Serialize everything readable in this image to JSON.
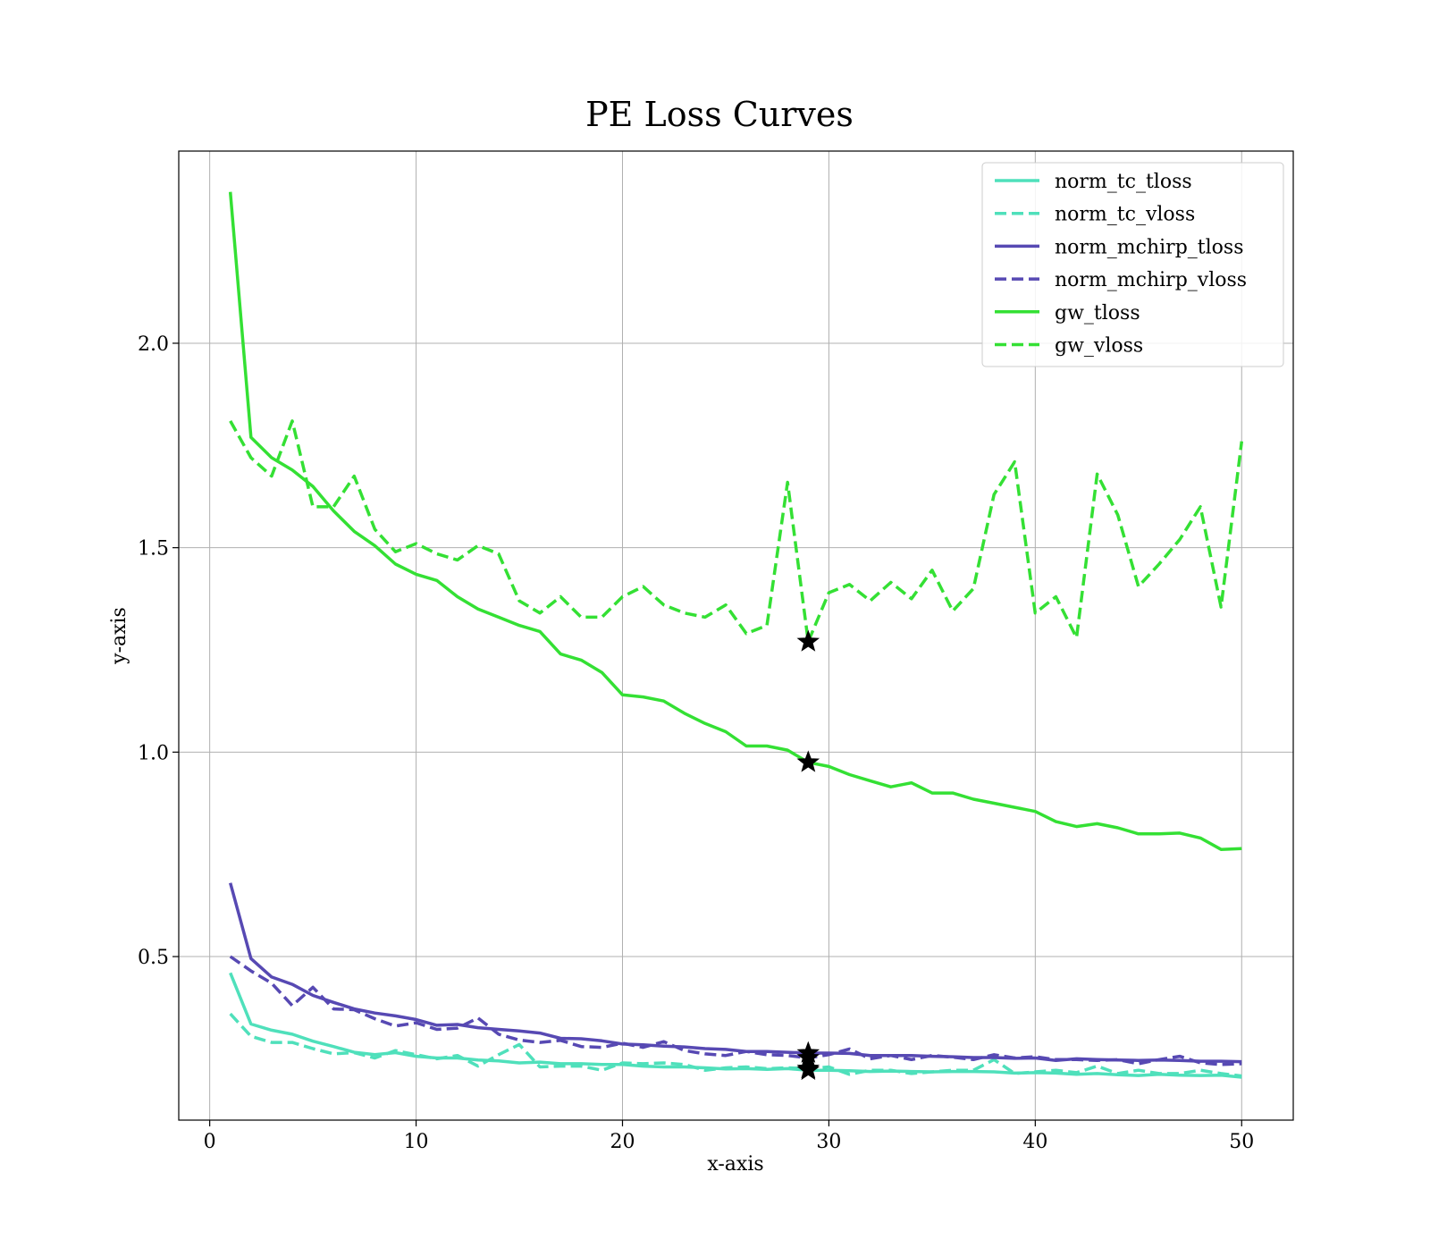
{
  "chart_data": {
    "type": "line",
    "title": "PE Loss Curves",
    "xlabel": "x-axis",
    "ylabel": "y-axis",
    "xlim": [
      -1.5,
      52.5
    ],
    "ylim": [
      0.1,
      2.47
    ],
    "xticks": [
      0,
      10,
      20,
      30,
      40,
      50
    ],
    "xtick_labels": [
      "0",
      "10",
      "20",
      "30",
      "40",
      "50"
    ],
    "yticks": [
      0.5,
      1.0,
      1.5,
      2.0
    ],
    "ytick_labels": [
      "0.5",
      "1.0",
      "1.5",
      "2.0"
    ],
    "grid": true,
    "legend_position": "top-right",
    "x": [
      1,
      2,
      3,
      4,
      5,
      6,
      7,
      8,
      9,
      10,
      11,
      12,
      13,
      14,
      15,
      16,
      17,
      18,
      19,
      20,
      21,
      22,
      23,
      24,
      25,
      26,
      27,
      28,
      29,
      30,
      31,
      32,
      33,
      34,
      35,
      36,
      37,
      38,
      39,
      40,
      41,
      42,
      43,
      44,
      45,
      46,
      47,
      48,
      49,
      50
    ],
    "series": [
      {
        "name": "norm_tc_tloss",
        "color": "#4fe0bb",
        "dash": "solid",
        "values": [
          0.46,
          0.335,
          0.32,
          0.31,
          0.293,
          0.28,
          0.266,
          0.26,
          0.265,
          0.256,
          0.252,
          0.252,
          0.247,
          0.245,
          0.24,
          0.242,
          0.238,
          0.238,
          0.236,
          0.236,
          0.232,
          0.23,
          0.23,
          0.228,
          0.225,
          0.226,
          0.224,
          0.226,
          0.222,
          0.222,
          0.221,
          0.219,
          0.22,
          0.219,
          0.218,
          0.219,
          0.219,
          0.218,
          0.215,
          0.216,
          0.215,
          0.212,
          0.214,
          0.211,
          0.209,
          0.212,
          0.21,
          0.209,
          0.21,
          0.205
        ]
      },
      {
        "name": "norm_tc_vloss",
        "color": "#4fe0bb",
        "dash": "dashed",
        "values": [
          0.36,
          0.305,
          0.29,
          0.29,
          0.275,
          0.262,
          0.265,
          0.252,
          0.27,
          0.26,
          0.25,
          0.258,
          0.232,
          0.26,
          0.285,
          0.23,
          0.232,
          0.232,
          0.222,
          0.24,
          0.238,
          0.24,
          0.236,
          0.222,
          0.228,
          0.23,
          0.226,
          0.228,
          0.226,
          0.23,
          0.212,
          0.222,
          0.222,
          0.214,
          0.218,
          0.222,
          0.222,
          0.248,
          0.214,
          0.218,
          0.222,
          0.216,
          0.232,
          0.214,
          0.222,
          0.214,
          0.214,
          0.222,
          0.214,
          0.208
        ]
      },
      {
        "name": "norm_mchirp_tloss",
        "color": "#5749b3",
        "dash": "solid",
        "values": [
          0.68,
          0.495,
          0.45,
          0.432,
          0.405,
          0.388,
          0.372,
          0.362,
          0.355,
          0.346,
          0.332,
          0.334,
          0.326,
          0.322,
          0.318,
          0.313,
          0.3,
          0.299,
          0.294,
          0.286,
          0.284,
          0.281,
          0.279,
          0.275,
          0.273,
          0.268,
          0.268,
          0.266,
          0.264,
          0.264,
          0.263,
          0.258,
          0.258,
          0.258,
          0.256,
          0.255,
          0.253,
          0.253,
          0.251,
          0.252,
          0.246,
          0.25,
          0.248,
          0.247,
          0.246,
          0.247,
          0.246,
          0.244,
          0.244,
          0.243
        ]
      },
      {
        "name": "norm_mchirp_vloss",
        "color": "#5749b3",
        "dash": "dashed",
        "values": [
          0.5,
          0.465,
          0.435,
          0.38,
          0.425,
          0.372,
          0.37,
          0.348,
          0.33,
          0.338,
          0.322,
          0.325,
          0.35,
          0.31,
          0.296,
          0.29,
          0.295,
          0.28,
          0.278,
          0.288,
          0.278,
          0.292,
          0.27,
          0.262,
          0.258,
          0.268,
          0.26,
          0.258,
          0.252,
          0.26,
          0.274,
          0.25,
          0.258,
          0.248,
          0.258,
          0.254,
          0.248,
          0.26,
          0.252,
          0.255,
          0.248,
          0.248,
          0.246,
          0.248,
          0.238,
          0.248,
          0.256,
          0.24,
          0.236,
          0.238
        ]
      },
      {
        "name": "gw_tloss",
        "color": "#34e034",
        "dash": "solid",
        "values": [
          2.37,
          1.77,
          1.72,
          1.69,
          1.65,
          1.59,
          1.54,
          1.505,
          1.46,
          1.435,
          1.42,
          1.38,
          1.35,
          1.33,
          1.31,
          1.295,
          1.24,
          1.225,
          1.195,
          1.14,
          1.135,
          1.125,
          1.095,
          1.07,
          1.05,
          1.015,
          1.015,
          1.005,
          0.975,
          0.965,
          0.945,
          0.93,
          0.915,
          0.925,
          0.9,
          0.9,
          0.885,
          0.875,
          0.865,
          0.855,
          0.83,
          0.818,
          0.825,
          0.815,
          0.8,
          0.8,
          0.802,
          0.79,
          0.762,
          0.764
        ]
      },
      {
        "name": "gw_vloss",
        "color": "#34e034",
        "dash": "dashed",
        "values": [
          1.81,
          1.72,
          1.675,
          1.81,
          1.6,
          1.6,
          1.675,
          1.545,
          1.49,
          1.51,
          1.485,
          1.47,
          1.505,
          1.485,
          1.37,
          1.34,
          1.38,
          1.33,
          1.33,
          1.38,
          1.405,
          1.36,
          1.34,
          1.33,
          1.36,
          1.29,
          1.31,
          1.66,
          1.27,
          1.39,
          1.41,
          1.37,
          1.415,
          1.375,
          1.445,
          1.345,
          1.4,
          1.63,
          1.71,
          1.34,
          1.38,
          1.28,
          1.68,
          1.58,
          1.405,
          1.46,
          1.52,
          1.6,
          1.355,
          1.76
        ]
      }
    ],
    "markers": [
      {
        "x": 29,
        "y": 1.27,
        "symbol": "star",
        "color": "#000000"
      },
      {
        "x": 29,
        "y": 0.975,
        "symbol": "star",
        "color": "#000000"
      },
      {
        "x": 29,
        "y": 0.264,
        "symbol": "star",
        "color": "#000000"
      },
      {
        "x": 29,
        "y": 0.252,
        "symbol": "star",
        "color": "#000000"
      },
      {
        "x": 29,
        "y": 0.226,
        "symbol": "star",
        "color": "#000000"
      },
      {
        "x": 29,
        "y": 0.222,
        "symbol": "star",
        "color": "#000000"
      }
    ]
  }
}
